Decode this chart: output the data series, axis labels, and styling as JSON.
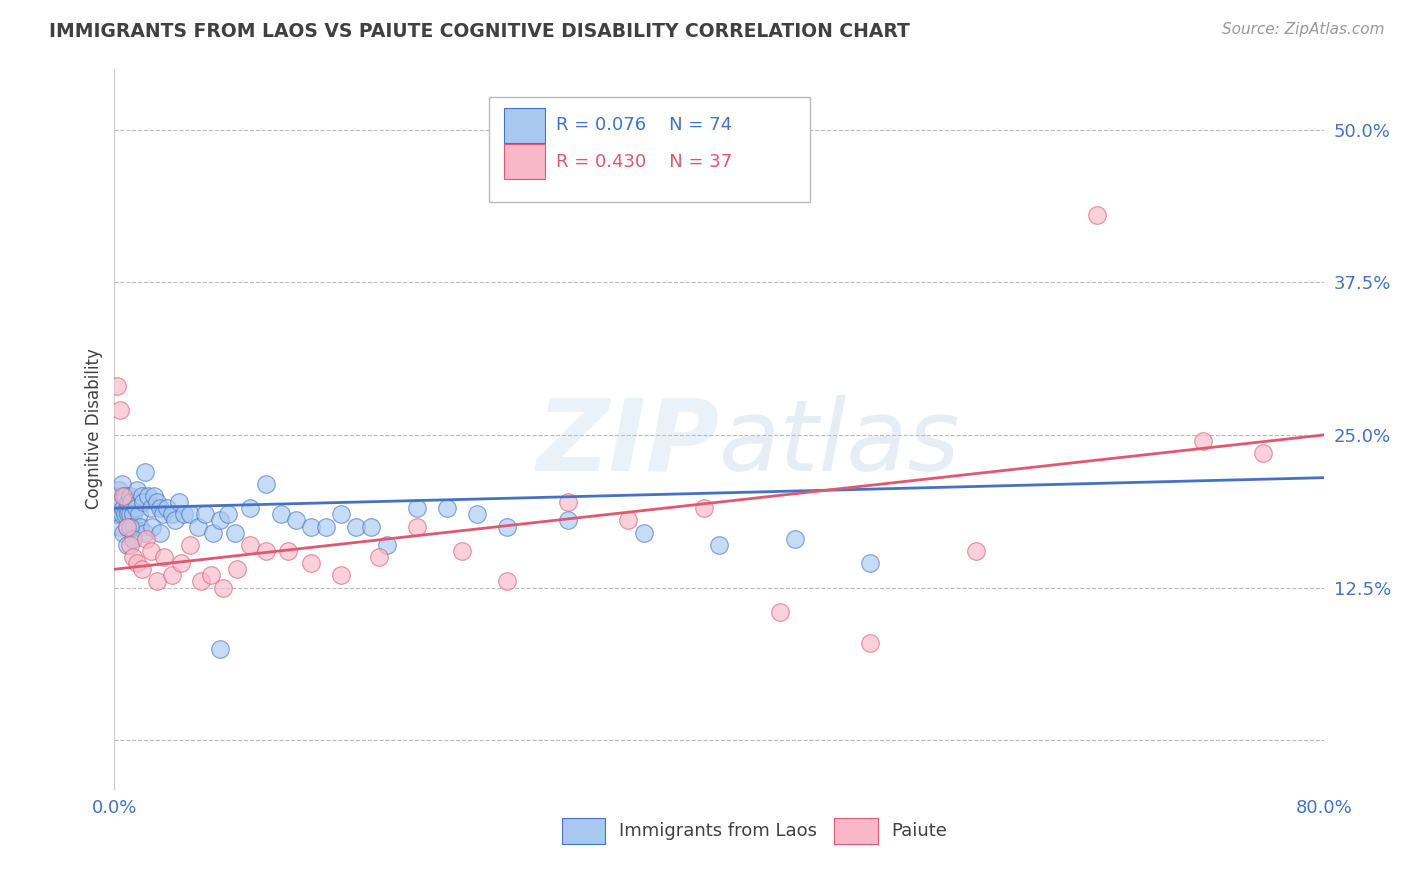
{
  "title": "IMMIGRANTS FROM LAOS VS PAIUTE COGNITIVE DISABILITY CORRELATION CHART",
  "source": "Source: ZipAtlas.com",
  "ylabel": "Cognitive Disability",
  "legend_label1": "Immigrants from Laos",
  "legend_label2": "Paiute",
  "R1": 0.076,
  "N1": 74,
  "R2": 0.43,
  "N2": 37,
  "xlim": [
    0.0,
    0.8
  ],
  "ylim": [
    -0.04,
    0.55
  ],
  "yticks": [
    0.0,
    0.125,
    0.25,
    0.375,
    0.5
  ],
  "ytick_labels": [
    "",
    "12.5%",
    "25.0%",
    "37.5%",
    "50.0%"
  ],
  "xticks": [
    0.0,
    0.2,
    0.4,
    0.6,
    0.8
  ],
  "xtick_labels": [
    "0.0%",
    "",
    "",
    "",
    "80.0%"
  ],
  "color_blue": "#A8C8F0",
  "color_pink": "#F8B8C8",
  "line_blue": "#4472C4",
  "line_pink": "#E05870",
  "axis_label_color": "#4472C4",
  "title_color": "#404040",
  "blue_line_x": [
    0.0,
    0.8
  ],
  "blue_line_y": [
    0.19,
    0.215
  ],
  "pink_line_x": [
    0.0,
    0.8
  ],
  "pink_line_y": [
    0.14,
    0.25
  ],
  "blue_x": [
    0.001,
    0.001,
    0.002,
    0.002,
    0.003,
    0.003,
    0.004,
    0.004,
    0.005,
    0.005,
    0.006,
    0.006,
    0.007,
    0.007,
    0.008,
    0.008,
    0.009,
    0.009,
    0.01,
    0.01,
    0.011,
    0.012,
    0.013,
    0.014,
    0.015,
    0.016,
    0.017,
    0.018,
    0.019,
    0.02,
    0.022,
    0.024,
    0.026,
    0.028,
    0.03,
    0.032,
    0.035,
    0.038,
    0.04,
    0.043,
    0.046,
    0.05,
    0.055,
    0.06,
    0.065,
    0.07,
    0.075,
    0.08,
    0.09,
    0.1,
    0.11,
    0.12,
    0.13,
    0.14,
    0.15,
    0.16,
    0.17,
    0.18,
    0.2,
    0.22,
    0.24,
    0.26,
    0.3,
    0.35,
    0.4,
    0.45,
    0.5,
    0.02,
    0.025,
    0.03,
    0.008,
    0.01,
    0.012,
    0.07
  ],
  "blue_y": [
    0.195,
    0.185,
    0.2,
    0.19,
    0.185,
    0.205,
    0.175,
    0.195,
    0.21,
    0.185,
    0.19,
    0.17,
    0.185,
    0.2,
    0.19,
    0.175,
    0.185,
    0.195,
    0.2,
    0.185,
    0.195,
    0.185,
    0.175,
    0.19,
    0.205,
    0.185,
    0.175,
    0.2,
    0.195,
    0.22,
    0.2,
    0.19,
    0.2,
    0.195,
    0.19,
    0.185,
    0.19,
    0.185,
    0.18,
    0.195,
    0.185,
    0.185,
    0.175,
    0.185,
    0.17,
    0.18,
    0.185,
    0.17,
    0.19,
    0.21,
    0.185,
    0.18,
    0.175,
    0.175,
    0.185,
    0.175,
    0.175,
    0.16,
    0.19,
    0.19,
    0.185,
    0.175,
    0.18,
    0.17,
    0.16,
    0.165,
    0.145,
    0.17,
    0.175,
    0.17,
    0.16,
    0.175,
    0.165,
    0.075
  ],
  "pink_x": [
    0.002,
    0.004,
    0.006,
    0.008,
    0.01,
    0.012,
    0.015,
    0.018,
    0.021,
    0.024,
    0.028,
    0.033,
    0.038,
    0.044,
    0.05,
    0.057,
    0.064,
    0.072,
    0.081,
    0.09,
    0.1,
    0.115,
    0.13,
    0.15,
    0.175,
    0.2,
    0.23,
    0.26,
    0.3,
    0.34,
    0.39,
    0.44,
    0.5,
    0.57,
    0.65,
    0.72,
    0.76
  ],
  "pink_y": [
    0.29,
    0.27,
    0.2,
    0.175,
    0.16,
    0.15,
    0.145,
    0.14,
    0.165,
    0.155,
    0.13,
    0.15,
    0.135,
    0.145,
    0.16,
    0.13,
    0.135,
    0.125,
    0.14,
    0.16,
    0.155,
    0.155,
    0.145,
    0.135,
    0.15,
    0.175,
    0.155,
    0.13,
    0.195,
    0.18,
    0.19,
    0.105,
    0.08,
    0.155,
    0.43,
    0.245,
    0.235
  ]
}
